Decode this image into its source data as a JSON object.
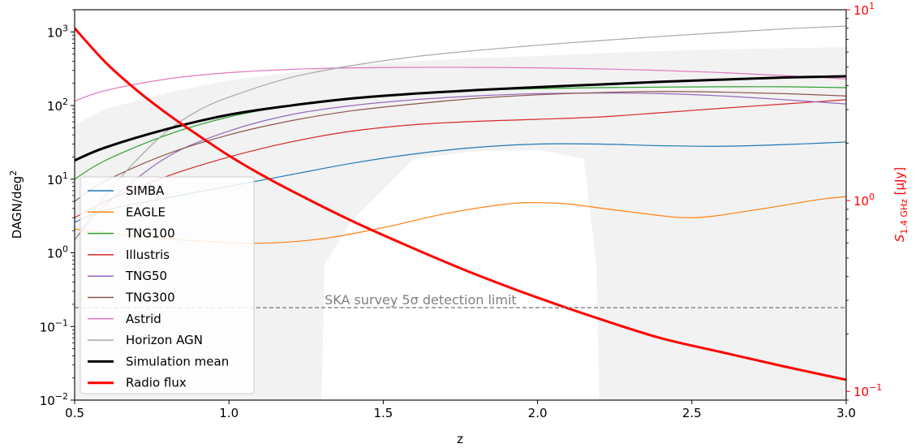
{
  "chart_data": {
    "type": "line",
    "xlabel": "z",
    "ylabel": "DAGN/deg",
    "ylabel_sup": "2",
    "y2label_main": "S",
    "y2label_sub": "1.4 GHz",
    "y2label_unit": " [μJy]",
    "xlim": [
      0.5,
      3.0
    ],
    "ylim": [
      0.01,
      2000
    ],
    "y_scale": "log",
    "y2lim": [
      0.09,
      10
    ],
    "y2_scale": "log",
    "grid": false,
    "legend_position": "lower-left",
    "x_ticks": [
      {
        "value": 0.5,
        "label": "0.5"
      },
      {
        "value": 1.0,
        "label": "1.0"
      },
      {
        "value": 1.5,
        "label": "1.5"
      },
      {
        "value": 2.0,
        "label": "2.0"
      },
      {
        "value": 2.5,
        "label": "2.5"
      },
      {
        "value": 3.0,
        "label": "3.0"
      }
    ],
    "y_ticks": [
      {
        "value": 0.01,
        "base": "10",
        "exp": "−2"
      },
      {
        "value": 0.1,
        "base": "10",
        "exp": "−1"
      },
      {
        "value": 1,
        "base": "10",
        "exp": "0"
      },
      {
        "value": 10,
        "base": "10",
        "exp": "1"
      },
      {
        "value": 100,
        "base": "10",
        "exp": "2"
      },
      {
        "value": 1000,
        "base": "10",
        "exp": "3"
      }
    ],
    "y2_ticks": [
      {
        "value": 0.1,
        "base": "10",
        "exp": "−1"
      },
      {
        "value": 1,
        "base": "10",
        "exp": "0"
      },
      {
        "value": 10,
        "base": "10",
        "exp": "1"
      }
    ],
    "shaded_region": {
      "x": [
        0.5,
        0.6,
        0.8,
        1.0,
        1.2,
        1.3,
        1.31,
        1.4,
        1.6,
        1.8,
        2.0,
        2.15,
        2.19,
        2.2,
        2.4,
        2.6,
        2.8,
        3.0
      ],
      "y_low": [
        0.01,
        0.01,
        0.01,
        0.01,
        0.01,
        0.01,
        0.7,
        2.8,
        19,
        24,
        25,
        19,
        0.7,
        0.01,
        0.01,
        0.01,
        0.01,
        0.01
      ],
      "y_high": [
        55,
        90,
        150,
        220,
        280,
        320,
        330,
        360,
        400,
        440,
        470,
        500,
        510,
        515,
        550,
        580,
        600,
        620
      ]
    },
    "detection_limit": {
      "y": 0.18,
      "label": "SKA survey 5σ detection limit",
      "color": "#808080"
    },
    "series": [
      {
        "name": "SIMBA",
        "color": "#1f77b4",
        "x": [
          0.5,
          0.6,
          0.8,
          1.0,
          1.2,
          1.4,
          1.6,
          1.8,
          2.0,
          2.2,
          2.4,
          2.6,
          2.8,
          3.0
        ],
        "y": [
          2.6,
          3.8,
          5.6,
          8.0,
          11.5,
          16.5,
          22,
          27,
          30,
          30,
          28.5,
          28,
          29.5,
          32
        ]
      },
      {
        "name": "EAGLE",
        "color": "#ff7f0e",
        "x": [
          0.5,
          0.7,
          0.9,
          1.1,
          1.3,
          1.5,
          1.7,
          1.9,
          2.0,
          2.1,
          2.3,
          2.5,
          2.7,
          2.9,
          3.0
        ],
        "y": [
          2.1,
          1.7,
          1.45,
          1.35,
          1.55,
          2.2,
          3.4,
          4.6,
          4.8,
          4.6,
          3.6,
          3.0,
          3.8,
          5.2,
          5.8
        ]
      },
      {
        "name": "TNG100",
        "color": "#2ca02c",
        "x": [
          0.5,
          0.6,
          0.8,
          1.0,
          1.2,
          1.4,
          1.6,
          1.8,
          2.0,
          2.2,
          2.4,
          2.6,
          2.8,
          3.0
        ],
        "y": [
          10,
          18,
          40,
          70,
          100,
          125,
          145,
          160,
          170,
          175,
          178,
          180,
          180,
          175
        ]
      },
      {
        "name": "Illustris",
        "color": "#d62728",
        "x": [
          0.5,
          0.6,
          0.8,
          1.0,
          1.2,
          1.4,
          1.6,
          1.8,
          2.0,
          2.2,
          2.4,
          2.6,
          2.8,
          3.0
        ],
        "y": [
          3.0,
          5.0,
          11,
          20,
          32,
          45,
          55,
          61,
          65,
          70,
          80,
          92,
          105,
          120
        ]
      },
      {
        "name": "TNG50",
        "color": "#9467bd",
        "x": [
          0.5,
          0.6,
          0.8,
          1.0,
          1.2,
          1.4,
          1.6,
          1.8,
          2.0,
          2.2,
          2.4,
          2.6,
          2.8,
          3.0
        ],
        "y": [
          1.5,
          4.5,
          20,
          45,
          75,
          100,
          120,
          135,
          145,
          148,
          145,
          135,
          120,
          105
        ]
      },
      {
        "name": "TNG300",
        "color": "#8c564b",
        "x": [
          0.5,
          0.6,
          0.8,
          1.0,
          1.2,
          1.4,
          1.6,
          1.8,
          2.0,
          2.2,
          2.4,
          2.6,
          2.8,
          3.0
        ],
        "y": [
          5,
          9.5,
          22,
          40,
          62,
          85,
          105,
          125,
          140,
          150,
          155,
          152,
          145,
          135
        ]
      },
      {
        "name": "Astrid",
        "color": "#e377c2",
        "x": [
          0.5,
          0.6,
          0.8,
          1.0,
          1.2,
          1.4,
          1.6,
          1.8,
          2.0,
          2.2,
          2.4,
          2.6,
          2.8,
          3.0
        ],
        "y": [
          115,
          160,
          230,
          280,
          310,
          325,
          330,
          330,
          325,
          315,
          300,
          280,
          255,
          230
        ]
      },
      {
        "name": "Horizon AGN",
        "color": "#a8a8a8",
        "x": [
          0.5,
          0.6,
          0.7,
          0.8,
          0.9,
          1.0,
          1.2,
          1.4,
          1.6,
          1.8,
          2.0,
          2.2,
          2.4,
          2.6,
          2.8,
          3.0
        ],
        "y": [
          1.5,
          6,
          18,
          45,
          85,
          130,
          240,
          350,
          460,
          560,
          660,
          760,
          870,
          980,
          1100,
          1200
        ]
      },
      {
        "name": "Simulation mean",
        "color": "#000000",
        "width": 3,
        "x": [
          0.5,
          0.6,
          0.8,
          1.0,
          1.2,
          1.4,
          1.6,
          1.8,
          2.0,
          2.2,
          2.4,
          2.6,
          2.8,
          3.0
        ],
        "y": [
          18,
          27,
          48,
          75,
          100,
          125,
          145,
          162,
          178,
          193,
          210,
          225,
          240,
          250
        ]
      },
      {
        "name": "Radio flux",
        "color": "#ff0000",
        "width": 3,
        "axis": "right",
        "x": [
          0.5,
          0.6,
          0.7,
          0.8,
          0.9,
          1.0,
          1.1,
          1.2,
          1.4,
          1.6,
          1.8,
          2.0,
          2.2,
          2.4,
          2.6,
          2.8,
          3.0
        ],
        "y": [
          8.0,
          5.3,
          3.8,
          2.85,
          2.2,
          1.72,
          1.38,
          1.13,
          0.78,
          0.56,
          0.41,
          0.31,
          0.24,
          0.19,
          0.16,
          0.135,
          0.115
        ]
      }
    ]
  }
}
